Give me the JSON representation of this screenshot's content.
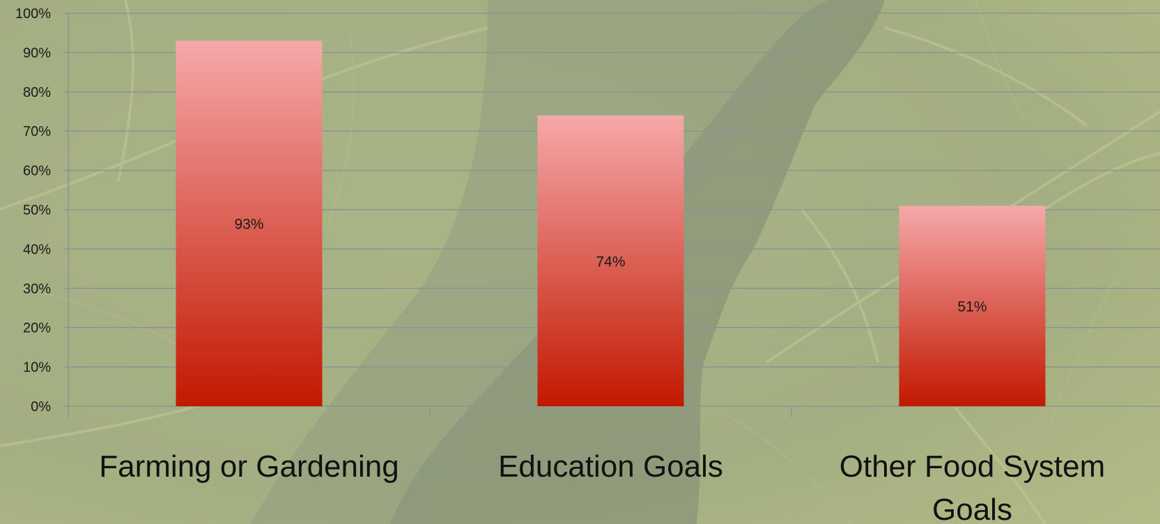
{
  "chart_data": {
    "type": "bar",
    "categories": [
      "Farming or Gardening",
      "Education Goals",
      "Other Food System Goals"
    ],
    "category_lines": [
      [
        "Farming or Gardening"
      ],
      [
        "Education Goals"
      ],
      [
        "Other Food System",
        "Goals"
      ]
    ],
    "values": [
      93,
      74,
      51
    ],
    "data_labels": [
      "93%",
      "74%",
      "51%"
    ],
    "ylim": [
      0,
      100
    ],
    "y_ticks": [
      0,
      10,
      20,
      30,
      40,
      50,
      60,
      70,
      80,
      90,
      100
    ],
    "y_tick_labels": [
      "0%",
      "10%",
      "20%",
      "30%",
      "40%",
      "50%",
      "60%",
      "70%",
      "80%",
      "90%",
      "100%"
    ],
    "title": "",
    "xlabel": "",
    "ylabel": "",
    "grid": true,
    "legend": "none",
    "colors": {
      "bar_top": "#f5a9aa",
      "bar_bottom": "#c21800",
      "gridline": "#8e9590",
      "background": "#a3ae80"
    }
  }
}
